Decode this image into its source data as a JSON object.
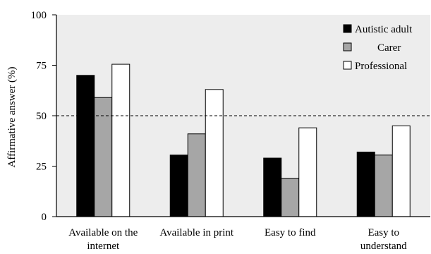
{
  "chart_data": {
    "type": "bar",
    "title": "",
    "xlabel": "",
    "ylabel": "Affirmative answer (%)",
    "ylim": [
      0,
      100
    ],
    "yticks": [
      0,
      25,
      50,
      75,
      100
    ],
    "reference_line": 50,
    "categories": [
      [
        "Available on the",
        "internet"
      ],
      [
        "Available in print"
      ],
      [
        "Easy to find"
      ],
      [
        "Easy to",
        "understand"
      ]
    ],
    "series": [
      {
        "name": "Autistic adult",
        "color": "#000000",
        "values": [
          70,
          30.5,
          29,
          32
        ]
      },
      {
        "name": "Carer",
        "color": "#a6a6a6",
        "values": [
          59,
          41,
          19,
          30.5
        ]
      },
      {
        "name": "Professional",
        "color": "#ffffff",
        "values": [
          75.5,
          63,
          44,
          45
        ]
      }
    ],
    "grid": false,
    "legend_position": "top-right",
    "background": "#ededed"
  }
}
